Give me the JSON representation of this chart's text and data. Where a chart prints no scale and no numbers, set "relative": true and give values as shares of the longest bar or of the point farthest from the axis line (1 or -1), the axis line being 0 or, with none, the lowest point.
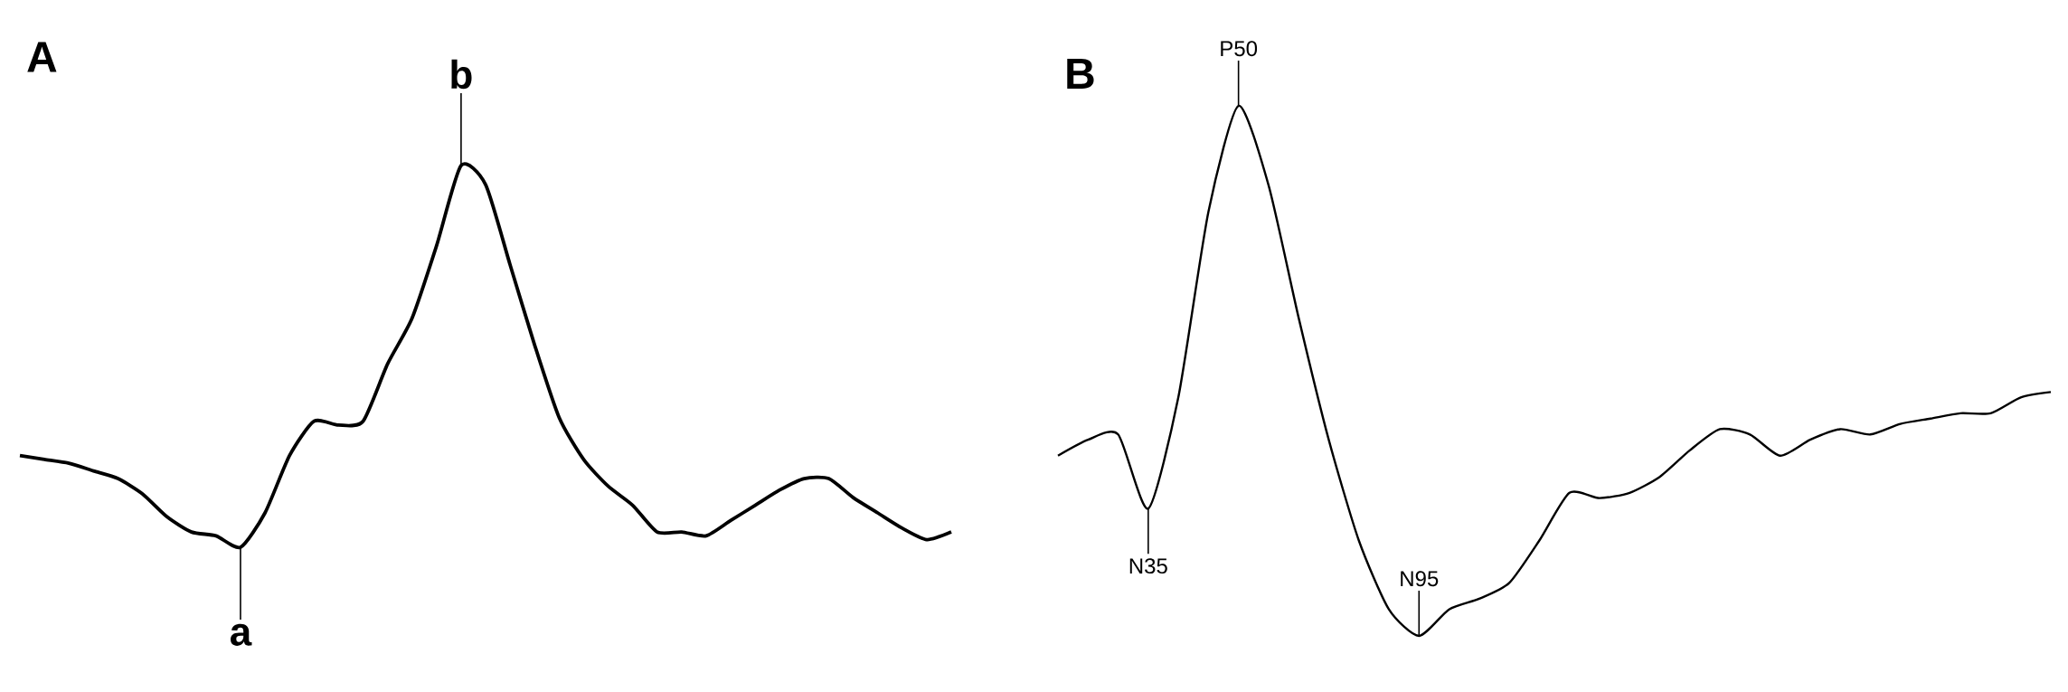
{
  "chart_data": [
    {
      "type": "line",
      "title": "A",
      "relative": true,
      "color": "#000000",
      "categories": [
        null,
        null,
        null,
        null,
        null,
        null,
        null,
        null,
        null,
        null,
        null,
        null,
        null,
        null,
        null,
        null,
        null,
        null,
        null,
        null,
        null,
        null,
        null,
        null,
        null,
        null,
        null,
        null,
        null,
        null,
        null,
        null,
        null,
        null,
        null,
        null,
        null,
        null,
        null
      ],
      "values": [
        0.24,
        0.23,
        0.22,
        0.2,
        0.18,
        0.14,
        0.08,
        0.04,
        0.03,
        0,
        0.09,
        0.24,
        0.33,
        0.32,
        0.33,
        0.48,
        0.6,
        0.79,
        1,
        0.95,
        0.74,
        0.53,
        0.34,
        0.23,
        0.16,
        0.11,
        0.04,
        0.04,
        0.03,
        0.07,
        0.11,
        0.15,
        0.18,
        0.18,
        0.13,
        0.09,
        0.05,
        0.02,
        0.04
      ],
      "annotations": [
        {
          "text": "a",
          "y": 0
        },
        {
          "text": "b",
          "y": 1
        }
      ]
    },
    {
      "type": "line",
      "title": "B",
      "relative": true,
      "color": "#000000",
      "categories": [
        null,
        null,
        null,
        null,
        null,
        null,
        null,
        null,
        null,
        null,
        null,
        null,
        null,
        null,
        null,
        null,
        null,
        null,
        null,
        null,
        null,
        null,
        null,
        null,
        null,
        null,
        null,
        null,
        null,
        null,
        null,
        null,
        null,
        null
      ],
      "values": [
        0.34,
        0.37,
        0.38,
        0.24,
        0.45,
        0.8,
        1,
        0.85,
        0.6,
        0.37,
        0.18,
        0.05,
        0,
        0.05,
        0.07,
        0.1,
        0.18,
        0.27,
        0.26,
        0.27,
        0.3,
        0.35,
        0.39,
        0.38,
        0.34,
        0.37,
        0.39,
        0.38,
        0.4,
        0.41,
        0.42,
        0.42,
        0.45,
        0.46
      ],
      "annotations": [
        {
          "text": "N35",
          "y": 0.24
        },
        {
          "text": "P50",
          "y": 1
        },
        {
          "text": "N95",
          "y": 0
        }
      ]
    }
  ]
}
